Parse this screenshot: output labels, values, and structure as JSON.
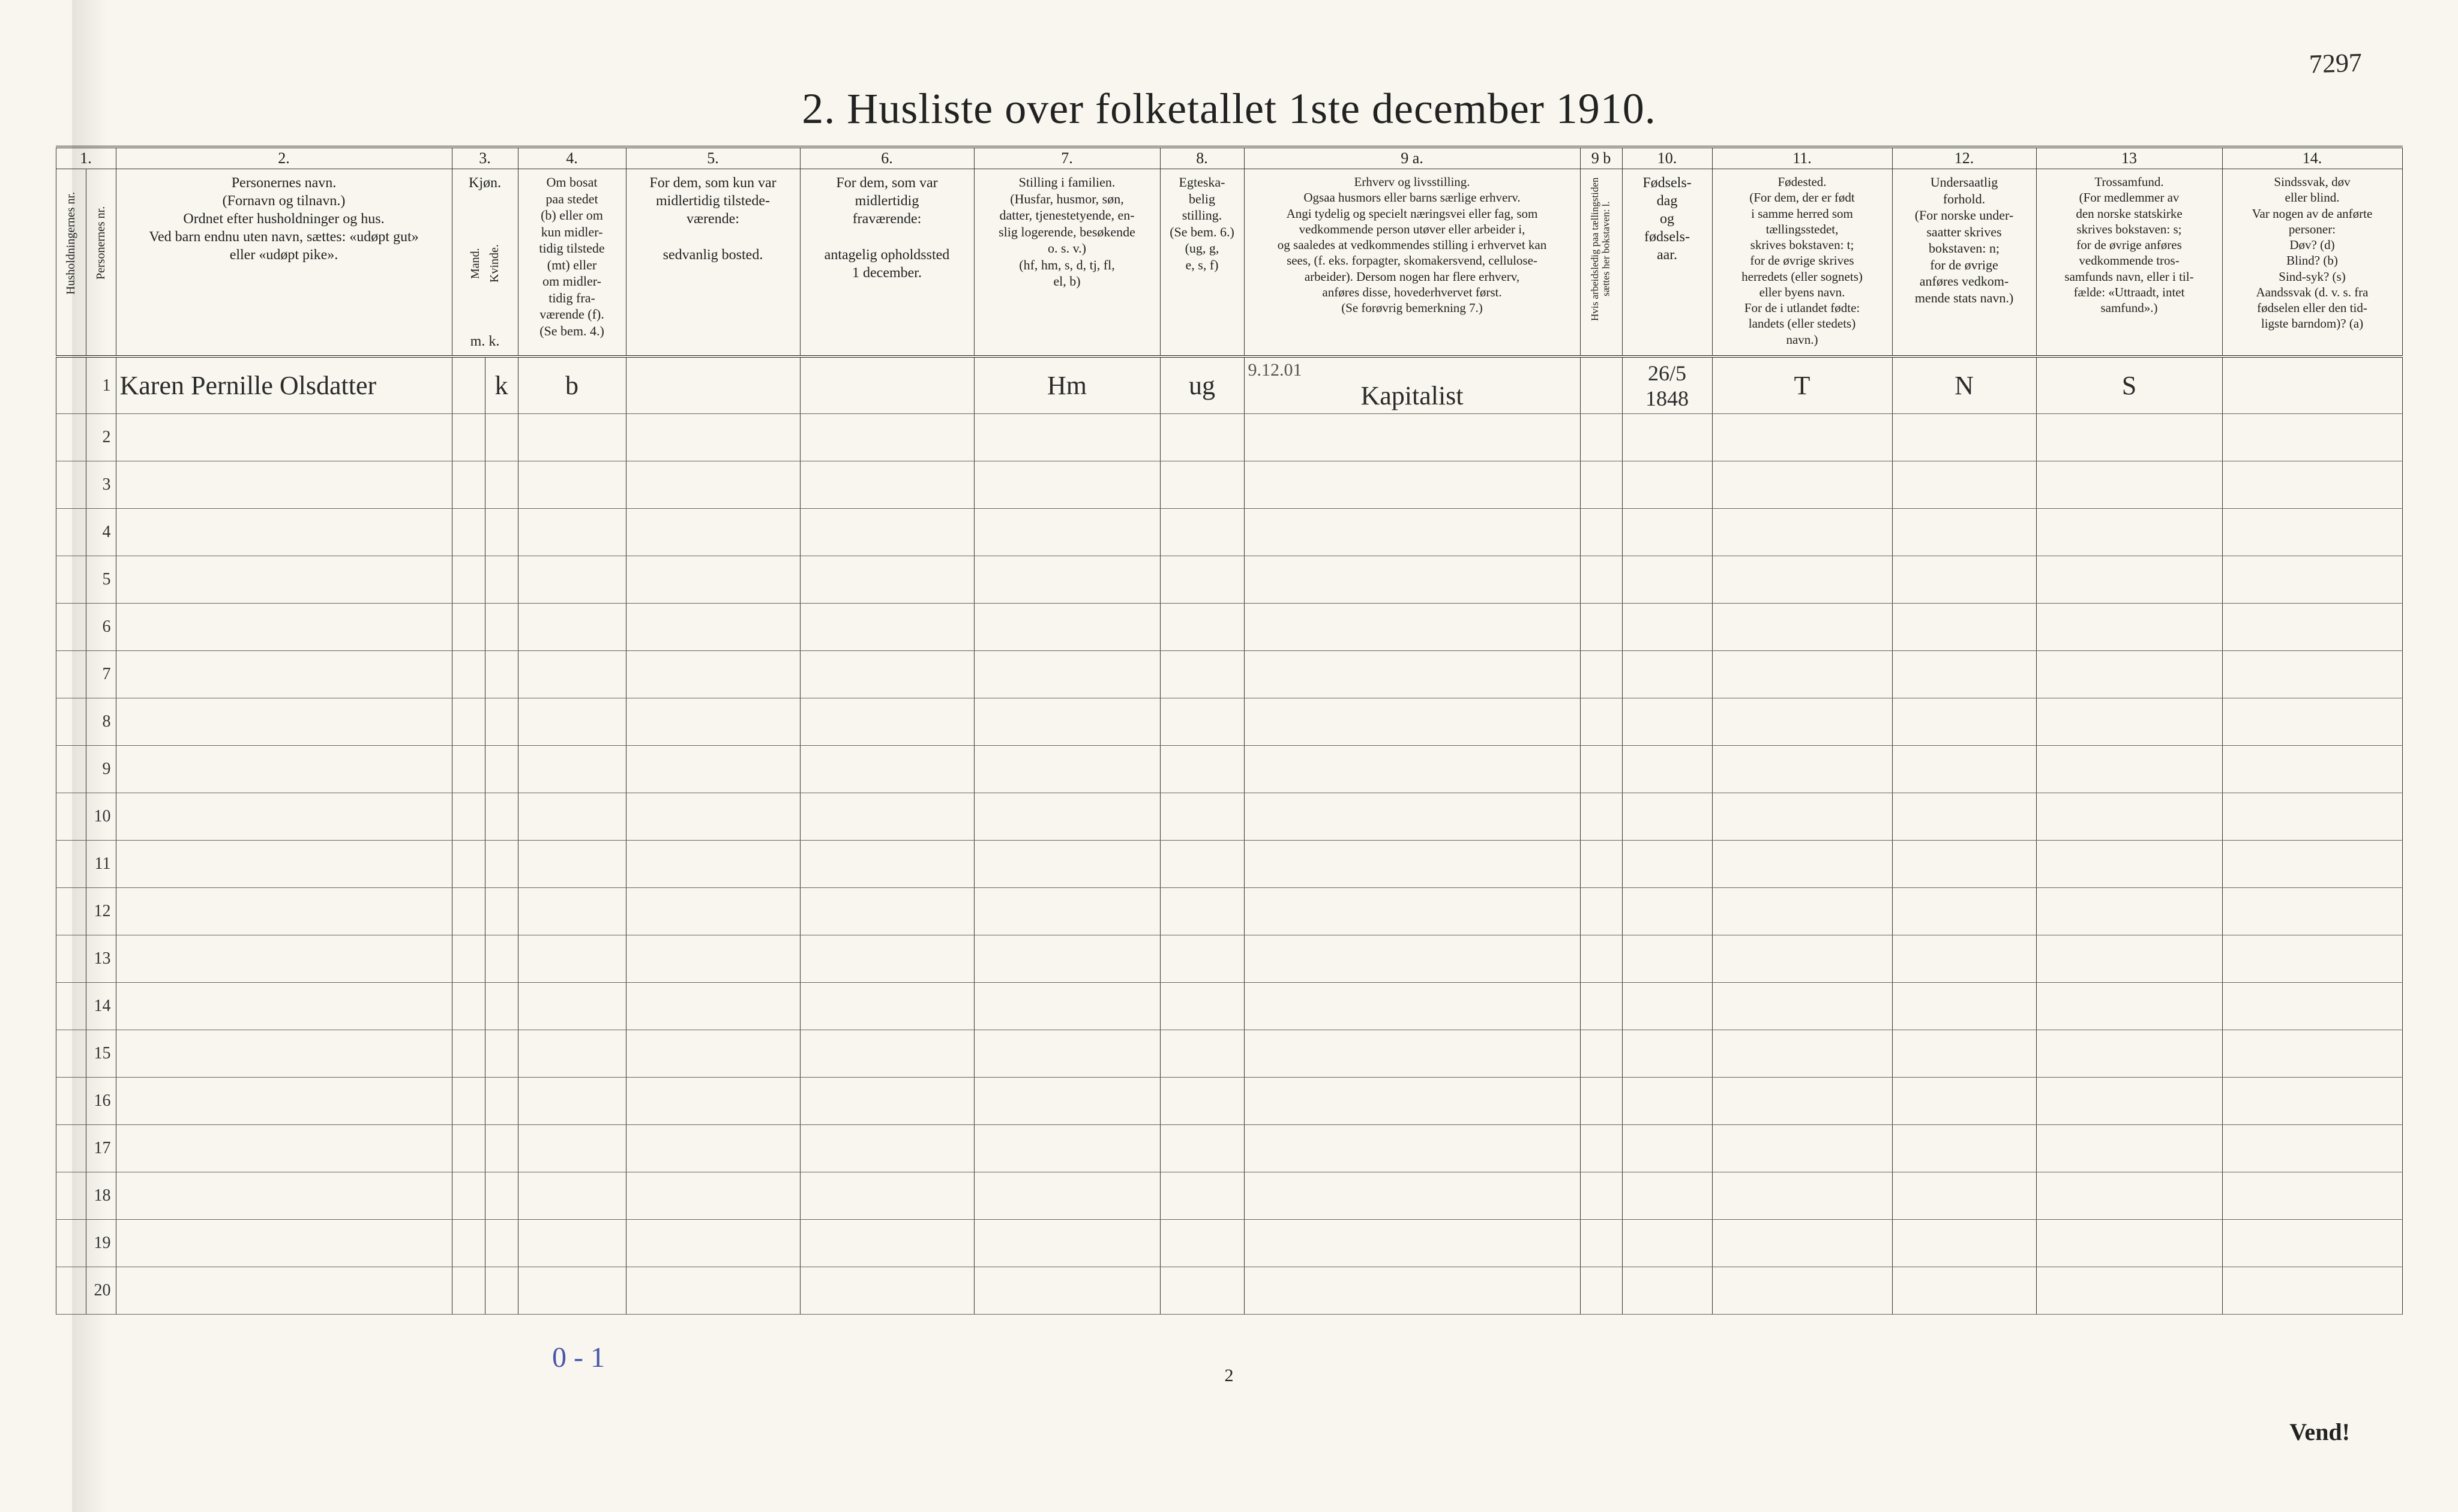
{
  "page": {
    "title": "2.  Husliste over folketallet 1ste december 1910.",
    "handwritten_topright": "7297",
    "page_number_bottom": "2",
    "vend": "Vend!",
    "bottom_pencil": "0 - 1"
  },
  "columns": {
    "col1": {
      "num": "1.",
      "header_vert_a": "Husholdningernes nr.",
      "header_vert_b": "Personernes nr."
    },
    "col2": {
      "num": "2.",
      "header": "Personernes navn.\n(Fornavn og tilnavn.)\nOrdnet efter husholdninger og hus.\nVed barn endnu uten navn, sættes: «udøpt gut»\neller «udøpt pike»."
    },
    "col3": {
      "num": "3.",
      "header_top": "Kjøn.",
      "sub_m": "Mand.",
      "sub_k": "Kvinde.",
      "sub_mk": "m.   k."
    },
    "col4": {
      "num": "4.",
      "header": "Om bosat\npaa stedet\n(b) eller om\nkun midler-\ntidig tilstede\n(mt) eller\nom midler-\ntidig fra-\nværende (f).\n(Se bem. 4.)"
    },
    "col5": {
      "num": "5.",
      "header": "For dem, som kun var\nmidlertidig tilstede-\nværende:\n\nsedvanlig bosted."
    },
    "col6": {
      "num": "6.",
      "header": "For dem, som var\nmidlertidig\nfraværende:\n\nantagelig opholdssted\n1 december."
    },
    "col7": {
      "num": "7.",
      "header": "Stilling i familien.\n(Husfar, husmor, søn,\ndatter, tjenestetyende, en-\nslig logerende, besøkende\no. s. v.)\n(hf, hm, s, d, tj, fl,\nel, b)"
    },
    "col8": {
      "num": "8.",
      "header": "Egteska-\nbelig\nstilling.\n(Se bem. 6.)\n(ug, g,\ne, s, f)"
    },
    "col9a": {
      "num": "9 a.",
      "header": "Erhverv og livsstilling.\nOgsaa husmors eller barns særlige erhverv.\nAngi tydelig og specielt næringsvei eller fag, som\nvedkommende person utøver eller arbeider i,\nog saaledes at vedkommendes stilling i erhvervet kan\nsees, (f. eks. forpagter, skomakersvend, cellulose-\narbeider). Dersom nogen har flere erhverv,\nanføres disse, hovederhvervet først.\n(Se forøvrig bemerkning 7.)"
    },
    "col9b": {
      "num": "9 b",
      "header_vert": "Hvis arbeidsledig\npaa tællingstiden sættes\nher bokstaven: l."
    },
    "col10": {
      "num": "10.",
      "header": "Fødsels-\ndag\nog\nfødsels-\naar."
    },
    "col11": {
      "num": "11.",
      "header": "Fødested.\n(For dem, der er født\ni samme herred som\ntællingsstedet,\nskrives bokstaven: t;\nfor de øvrige skrives\nherredets (eller sognets)\neller byens navn.\nFor de i utlandet fødte:\nlandets (eller stedets)\nnavn.)"
    },
    "col12": {
      "num": "12.",
      "header": "Undersaatlig\nforhold.\n(For norske under-\nsaatter skrives\nbokstaven: n;\nfor de øvrige\nanføres vedkom-\nmende stats navn.)"
    },
    "col13": {
      "num": "13",
      "header": "Trossamfund.\n(For medlemmer av\nden norske statskirke\nskrives bokstaven: s;\nfor de øvrige anføres\nvedkommende tros-\nsamfunds navn, eller i til-\nfælde: «Uttraadt, intet\nsamfund».)"
    },
    "col14": {
      "num": "14.",
      "header": "Sindssvak, døv\neller blind.\nVar nogen av de anførte\npersoner:\nDøv?          (d)\nBlind?        (b)\nSind-syk?   (s)\nAandssvak (d. v. s. fra\nfødselen eller den tid-\nligste barndom)?  (a)"
    }
  },
  "colwidths": {
    "c1a": 50,
    "c1b": 50,
    "c2": 560,
    "c3a": 55,
    "c3b": 55,
    "c4": 180,
    "c5": 290,
    "c6": 290,
    "c7": 310,
    "c8": 140,
    "c9a": 560,
    "c9b": 70,
    "c10": 150,
    "c11": 300,
    "c12": 240,
    "c13": 310,
    "c14": 300
  },
  "rows": [
    {
      "n": "1",
      "name": "Karen Pernille Olsdatter",
      "sex_m": "",
      "sex_k": "k",
      "bosat": "b",
      "c5": "",
      "c6": "",
      "family": "Hm",
      "marital": "ug",
      "occupation_note": "9.12.01",
      "occupation": "Kapitalist",
      "c9b": "",
      "birth": "26/5 1848",
      "birthplace": "T",
      "nationality": "N",
      "faith": "S",
      "c14": ""
    },
    {
      "n": "2"
    },
    {
      "n": "3"
    },
    {
      "n": "4"
    },
    {
      "n": "5"
    },
    {
      "n": "6"
    },
    {
      "n": "7"
    },
    {
      "n": "8"
    },
    {
      "n": "9"
    },
    {
      "n": "10"
    },
    {
      "n": "11"
    },
    {
      "n": "12"
    },
    {
      "n": "13"
    },
    {
      "n": "14"
    },
    {
      "n": "15"
    },
    {
      "n": "16"
    },
    {
      "n": "17"
    },
    {
      "n": "18"
    },
    {
      "n": "19"
    },
    {
      "n": "20"
    }
  ]
}
